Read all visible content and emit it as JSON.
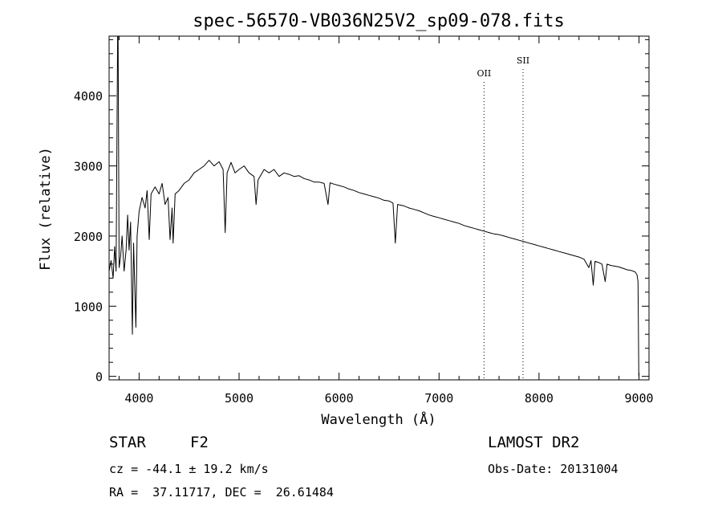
{
  "chart_data": {
    "type": "line",
    "title": "spec-56570-VB036N25V2_sp09-078.fits",
    "xlabel": "Wavelength (Å)",
    "ylabel": "Flux (relative)",
    "xlim": [
      3700,
      9100
    ],
    "ylim": [
      -50,
      4850
    ],
    "x_ticks": [
      4000,
      5000,
      6000,
      7000,
      8000,
      9000
    ],
    "y_ticks": [
      0,
      1000,
      2000,
      3000,
      4000
    ],
    "grid": false,
    "series": [
      {
        "color": "#000000",
        "points": [
          [
            3700,
            1500
          ],
          [
            3720,
            1650
          ],
          [
            3740,
            1400
          ],
          [
            3755,
            1850
          ],
          [
            3770,
            1500
          ],
          [
            3785,
            4850
          ],
          [
            3790,
            4850
          ],
          [
            3800,
            1550
          ],
          [
            3815,
            1700
          ],
          [
            3830,
            2000
          ],
          [
            3850,
            1500
          ],
          [
            3870,
            1800
          ],
          [
            3885,
            2300
          ],
          [
            3900,
            1800
          ],
          [
            3915,
            2200
          ],
          [
            3933,
            600
          ],
          [
            3945,
            1900
          ],
          [
            3968,
            700
          ],
          [
            3980,
            2000
          ],
          [
            4000,
            2350
          ],
          [
            4030,
            2550
          ],
          [
            4060,
            2400
          ],
          [
            4080,
            2650
          ],
          [
            4101,
            1950
          ],
          [
            4120,
            2600
          ],
          [
            4160,
            2700
          ],
          [
            4200,
            2600
          ],
          [
            4230,
            2750
          ],
          [
            4260,
            2450
          ],
          [
            4290,
            2550
          ],
          [
            4310,
            1950
          ],
          [
            4330,
            2400
          ],
          [
            4340,
            1900
          ],
          [
            4360,
            2600
          ],
          [
            4400,
            2650
          ],
          [
            4450,
            2750
          ],
          [
            4500,
            2800
          ],
          [
            4550,
            2900
          ],
          [
            4600,
            2950
          ],
          [
            4650,
            3000
          ],
          [
            4700,
            3080
          ],
          [
            4750,
            3000
          ],
          [
            4800,
            3060
          ],
          [
            4840,
            2950
          ],
          [
            4861,
            2050
          ],
          [
            4880,
            2900
          ],
          [
            4920,
            3050
          ],
          [
            4960,
            2900
          ],
          [
            5000,
            2950
          ],
          [
            5050,
            3000
          ],
          [
            5100,
            2900
          ],
          [
            5150,
            2850
          ],
          [
            5170,
            2450
          ],
          [
            5190,
            2800
          ],
          [
            5250,
            2950
          ],
          [
            5300,
            2900
          ],
          [
            5350,
            2950
          ],
          [
            5400,
            2850
          ],
          [
            5450,
            2900
          ],
          [
            5500,
            2880
          ],
          [
            5550,
            2850
          ],
          [
            5600,
            2860
          ],
          [
            5650,
            2820
          ],
          [
            5700,
            2800
          ],
          [
            5750,
            2770
          ],
          [
            5800,
            2770
          ],
          [
            5850,
            2750
          ],
          [
            5890,
            2450
          ],
          [
            5910,
            2760
          ],
          [
            5950,
            2740
          ],
          [
            6000,
            2720
          ],
          [
            6050,
            2700
          ],
          [
            6100,
            2670
          ],
          [
            6150,
            2650
          ],
          [
            6200,
            2620
          ],
          [
            6250,
            2600
          ],
          [
            6300,
            2580
          ],
          [
            6350,
            2560
          ],
          [
            6400,
            2540
          ],
          [
            6450,
            2510
          ],
          [
            6500,
            2500
          ],
          [
            6540,
            2470
          ],
          [
            6563,
            1900
          ],
          [
            6585,
            2450
          ],
          [
            6650,
            2430
          ],
          [
            6700,
            2400
          ],
          [
            6750,
            2380
          ],
          [
            6800,
            2360
          ],
          [
            6850,
            2330
          ],
          [
            6900,
            2300
          ],
          [
            6950,
            2280
          ],
          [
            7000,
            2260
          ],
          [
            7050,
            2240
          ],
          [
            7100,
            2220
          ],
          [
            7150,
            2200
          ],
          [
            7200,
            2180
          ],
          [
            7250,
            2150
          ],
          [
            7300,
            2130
          ],
          [
            7350,
            2110
          ],
          [
            7400,
            2090
          ],
          [
            7450,
            2070
          ],
          [
            7500,
            2050
          ],
          [
            7550,
            2030
          ],
          [
            7600,
            2020
          ],
          [
            7650,
            2000
          ],
          [
            7700,
            1980
          ],
          [
            7750,
            1960
          ],
          [
            7800,
            1940
          ],
          [
            7850,
            1920
          ],
          [
            7900,
            1900
          ],
          [
            7950,
            1880
          ],
          [
            8000,
            1860
          ],
          [
            8050,
            1840
          ],
          [
            8100,
            1820
          ],
          [
            8150,
            1800
          ],
          [
            8200,
            1780
          ],
          [
            8250,
            1760
          ],
          [
            8300,
            1740
          ],
          [
            8350,
            1720
          ],
          [
            8400,
            1700
          ],
          [
            8450,
            1670
          ],
          [
            8498,
            1550
          ],
          [
            8520,
            1650
          ],
          [
            8542,
            1300
          ],
          [
            8560,
            1640
          ],
          [
            8600,
            1620
          ],
          [
            8630,
            1600
          ],
          [
            8662,
            1350
          ],
          [
            8680,
            1600
          ],
          [
            8720,
            1580
          ],
          [
            8760,
            1570
          ],
          [
            8800,
            1560
          ],
          [
            8840,
            1540
          ],
          [
            8880,
            1520
          ],
          [
            8920,
            1510
          ],
          [
            8960,
            1490
          ],
          [
            8980,
            1450
          ],
          [
            8990,
            1350
          ],
          [
            8998,
            0
          ]
        ]
      }
    ],
    "annotations": [
      {
        "label": "OII",
        "x": 7450
      },
      {
        "label": "SII",
        "x": 7840
      }
    ]
  },
  "info": {
    "object_class": "STAR",
    "subclass": "F2",
    "survey": "LAMOST DR2",
    "redshift": "cz = -44.1 ± 19.2 km/s",
    "obs_date": "Obs-Date: 20131004",
    "coords": "RA =  37.11717, DEC =  26.61484"
  }
}
